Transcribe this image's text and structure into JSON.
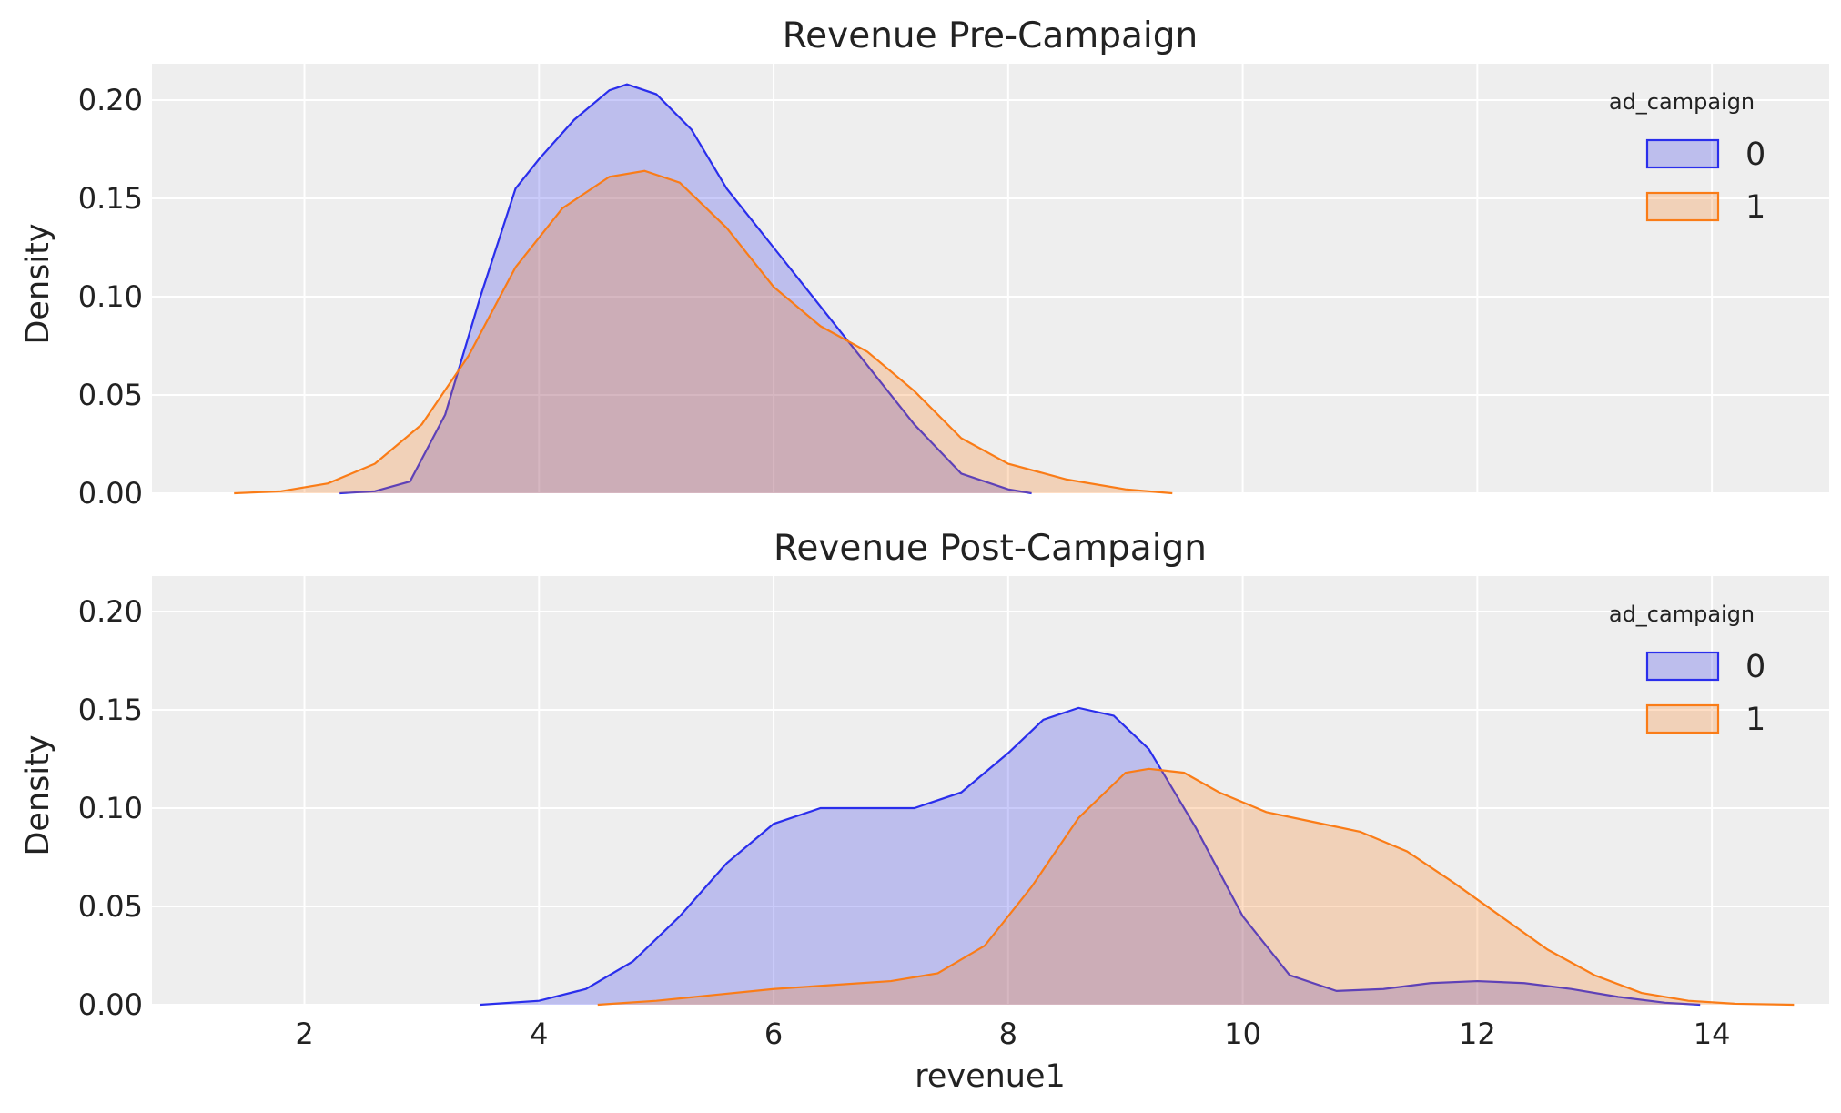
{
  "colors": {
    "panel_bg": "#eeeeee",
    "grid": "#ffffff",
    "series0": "#2a2eec",
    "series1": "#fa7c17"
  },
  "chart_data": [
    {
      "type": "area",
      "title": "Revenue Pre-Campaign",
      "xlabel": "",
      "ylabel": "Density",
      "xlim": [
        0.7,
        15.0
      ],
      "ylim": [
        0,
        0.2
      ],
      "x_ticks": [
        2,
        4,
        6,
        8,
        10,
        12,
        14
      ],
      "x_tick_labels": [],
      "y_ticks": [
        0.0,
        0.05,
        0.1,
        0.15,
        0.2
      ],
      "y_tick_labels": [
        "0.00",
        "0.05",
        "0.10",
        "0.15",
        "0.20"
      ],
      "grid": true,
      "legend": {
        "title": "ad_campaign",
        "position": "top-right"
      },
      "series": [
        {
          "name": "0",
          "points": [
            [
              2.3,
              0.0
            ],
            [
              2.6,
              0.001
            ],
            [
              2.9,
              0.006
            ],
            [
              3.2,
              0.04
            ],
            [
              3.5,
              0.1
            ],
            [
              3.8,
              0.155
            ],
            [
              4.0,
              0.17
            ],
            [
              4.3,
              0.19
            ],
            [
              4.6,
              0.205
            ],
            [
              4.75,
              0.208
            ],
            [
              5.0,
              0.203
            ],
            [
              5.3,
              0.185
            ],
            [
              5.6,
              0.155
            ],
            [
              6.0,
              0.125
            ],
            [
              6.4,
              0.095
            ],
            [
              6.8,
              0.065
            ],
            [
              7.2,
              0.035
            ],
            [
              7.6,
              0.01
            ],
            [
              8.0,
              0.002
            ],
            [
              8.2,
              0.0
            ]
          ]
        },
        {
          "name": "1",
          "points": [
            [
              1.4,
              0.0
            ],
            [
              1.8,
              0.001
            ],
            [
              2.2,
              0.005
            ],
            [
              2.6,
              0.015
            ],
            [
              3.0,
              0.035
            ],
            [
              3.4,
              0.07
            ],
            [
              3.8,
              0.115
            ],
            [
              4.2,
              0.145
            ],
            [
              4.6,
              0.161
            ],
            [
              4.9,
              0.164
            ],
            [
              5.2,
              0.158
            ],
            [
              5.6,
              0.135
            ],
            [
              6.0,
              0.105
            ],
            [
              6.4,
              0.085
            ],
            [
              6.8,
              0.072
            ],
            [
              7.2,
              0.052
            ],
            [
              7.6,
              0.028
            ],
            [
              8.0,
              0.015
            ],
            [
              8.5,
              0.007
            ],
            [
              9.0,
              0.002
            ],
            [
              9.4,
              0.0
            ]
          ]
        }
      ]
    },
    {
      "type": "area",
      "title": "Revenue Post-Campaign",
      "xlabel": "revenue1",
      "ylabel": "Density",
      "xlim": [
        0.7,
        15.0
      ],
      "ylim": [
        0,
        0.2
      ],
      "x_ticks": [
        2,
        4,
        6,
        8,
        10,
        12,
        14
      ],
      "x_tick_labels": [
        "2",
        "4",
        "6",
        "8",
        "10",
        "12",
        "14"
      ],
      "y_ticks": [
        0.0,
        0.05,
        0.1,
        0.15,
        0.2
      ],
      "y_tick_labels": [
        "0.00",
        "0.05",
        "0.10",
        "0.15",
        "0.20"
      ],
      "grid": true,
      "legend": {
        "title": "ad_campaign",
        "position": "top-right"
      },
      "series": [
        {
          "name": "0",
          "points": [
            [
              3.5,
              0.0
            ],
            [
              4.0,
              0.002
            ],
            [
              4.4,
              0.008
            ],
            [
              4.8,
              0.022
            ],
            [
              5.2,
              0.045
            ],
            [
              5.6,
              0.072
            ],
            [
              6.0,
              0.092
            ],
            [
              6.4,
              0.1
            ],
            [
              6.8,
              0.1
            ],
            [
              7.2,
              0.1
            ],
            [
              7.6,
              0.108
            ],
            [
              8.0,
              0.128
            ],
            [
              8.3,
              0.145
            ],
            [
              8.6,
              0.151
            ],
            [
              8.9,
              0.147
            ],
            [
              9.2,
              0.13
            ],
            [
              9.6,
              0.09
            ],
            [
              10.0,
              0.045
            ],
            [
              10.4,
              0.015
            ],
            [
              10.8,
              0.007
            ],
            [
              11.2,
              0.008
            ],
            [
              11.6,
              0.011
            ],
            [
              12.0,
              0.012
            ],
            [
              12.4,
              0.011
            ],
            [
              12.8,
              0.008
            ],
            [
              13.2,
              0.004
            ],
            [
              13.6,
              0.001
            ],
            [
              13.9,
              0.0
            ]
          ]
        },
        {
          "name": "1",
          "points": [
            [
              4.5,
              0.0
            ],
            [
              5.0,
              0.002
            ],
            [
              5.5,
              0.005
            ],
            [
              6.0,
              0.008
            ],
            [
              6.5,
              0.01
            ],
            [
              7.0,
              0.012
            ],
            [
              7.4,
              0.016
            ],
            [
              7.8,
              0.03
            ],
            [
              8.2,
              0.06
            ],
            [
              8.6,
              0.095
            ],
            [
              9.0,
              0.118
            ],
            [
              9.2,
              0.12
            ],
            [
              9.5,
              0.118
            ],
            [
              9.8,
              0.108
            ],
            [
              10.2,
              0.098
            ],
            [
              10.6,
              0.093
            ],
            [
              11.0,
              0.088
            ],
            [
              11.4,
              0.078
            ],
            [
              11.8,
              0.062
            ],
            [
              12.2,
              0.045
            ],
            [
              12.6,
              0.028
            ],
            [
              13.0,
              0.015
            ],
            [
              13.4,
              0.006
            ],
            [
              13.8,
              0.002
            ],
            [
              14.2,
              0.0005
            ],
            [
              14.7,
              0.0
            ]
          ]
        }
      ]
    }
  ]
}
